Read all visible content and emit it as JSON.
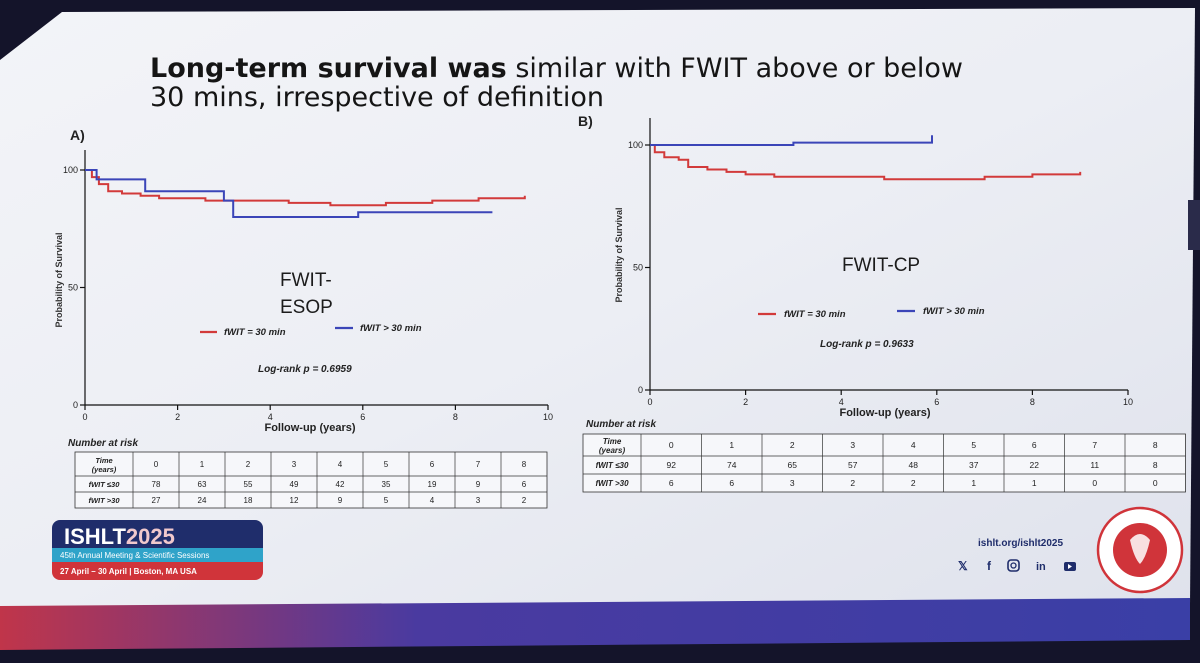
{
  "slide": {
    "title_bold": "Long-term survival was",
    "title_rest": " similar with FWIT above or below",
    "title_line2": "30 mins, irrespective of definition"
  },
  "colors": {
    "series_le30": "#d23a3a",
    "series_gt30": "#3b45b8",
    "brand_navy": "#1f2d6b",
    "brand_red": "#d0343a",
    "footer_band": "#2d2f8a"
  },
  "chart_data": [
    {
      "type": "line",
      "panel_label": "A)",
      "overlay_title": "FWIT-\nESOP",
      "overlay_line1": "FWIT-",
      "overlay_line2": "ESOP",
      "xlabel": "Follow-up (years)",
      "ylabel": "Probability of Survival",
      "xlim": [
        0,
        10
      ],
      "ylim": [
        0,
        100
      ],
      "x_ticks": [
        "0",
        "2",
        "4",
        "6",
        "8",
        "10"
      ],
      "y_ticks": [
        "0",
        "50",
        "100"
      ],
      "series": [
        {
          "name": "fWIT = 30 min",
          "color": "#d23a3a",
          "points": [
            [
              0,
              100
            ],
            [
              0.15,
              97
            ],
            [
              0.3,
              94
            ],
            [
              0.5,
              91
            ],
            [
              0.8,
              90
            ],
            [
              1.2,
              89
            ],
            [
              1.6,
              88
            ],
            [
              2.0,
              88
            ],
            [
              2.6,
              87
            ],
            [
              3.2,
              87
            ],
            [
              4.4,
              86
            ],
            [
              5.3,
              85
            ],
            [
              6.5,
              86
            ],
            [
              7.5,
              87
            ],
            [
              8.5,
              88
            ],
            [
              9.5,
              89
            ]
          ]
        },
        {
          "name": "fWIT > 30 min",
          "color": "#3b45b8",
          "points": [
            [
              0,
              100
            ],
            [
              0.25,
              96
            ],
            [
              1.3,
              96
            ],
            [
              1.3,
              91
            ],
            [
              3.0,
              91
            ],
            [
              3.0,
              87
            ],
            [
              3.2,
              87
            ],
            [
              3.2,
              80
            ],
            [
              5.9,
              80
            ],
            [
              5.9,
              82
            ],
            [
              8.8,
              82
            ]
          ]
        }
      ],
      "legend": [
        "fWIT = 30 min",
        "fWIT > 30 min"
      ],
      "legend_placement": "center",
      "annotation": "Log-rank p = 0.6959",
      "risk_table": {
        "title": "Number at risk",
        "header_label": "Time\n(years)",
        "header_label_line1": "Time",
        "header_label_line2": "(years)",
        "times": [
          "0",
          "1",
          "2",
          "3",
          "4",
          "5",
          "6",
          "7",
          "8"
        ],
        "rows": [
          {
            "label": "fWIT ≤30",
            "values": [
              "78",
              "63",
              "55",
              "49",
              "42",
              "35",
              "19",
              "9",
              "6"
            ]
          },
          {
            "label": "fWIT >30",
            "values": [
              "27",
              "24",
              "18",
              "12",
              "9",
              "5",
              "4",
              "3",
              "2"
            ]
          }
        ]
      }
    },
    {
      "type": "line",
      "panel_label": "B)",
      "overlay_title": "FWIT-CP",
      "xlabel": "Follow-up (years)",
      "ylabel": "Probability of Survival",
      "xlim": [
        0,
        10
      ],
      "ylim": [
        0,
        100
      ],
      "x_ticks": [
        "0",
        "2",
        "4",
        "6",
        "8",
        "10"
      ],
      "y_ticks": [
        "0",
        "50",
        "100"
      ],
      "series": [
        {
          "name": "fWIT = 30 min",
          "color": "#d23a3a",
          "points": [
            [
              0,
              100
            ],
            [
              0.1,
              97
            ],
            [
              0.3,
              95
            ],
            [
              0.6,
              94
            ],
            [
              0.8,
              91
            ],
            [
              1.2,
              90
            ],
            [
              1.6,
              89
            ],
            [
              2.0,
              88
            ],
            [
              2.6,
              87
            ],
            [
              3.4,
              87
            ],
            [
              4.2,
              87
            ],
            [
              4.9,
              86
            ],
            [
              6.0,
              86
            ],
            [
              7.0,
              87
            ],
            [
              8.0,
              88
            ],
            [
              9.0,
              89
            ]
          ]
        },
        {
          "name": "fWIT > 30 min",
          "color": "#3b45b8",
          "points": [
            [
              0,
              100
            ],
            [
              0.4,
              100
            ],
            [
              3.0,
              101
            ],
            [
              5.9,
              104
            ]
          ]
        }
      ],
      "legend": [
        "fWIT = 30 min",
        "fWIT > 30 min"
      ],
      "legend_placement": "center",
      "annotation": "Log-rank p = 0.9633",
      "risk_table": {
        "title": "Number at risk",
        "header_label": "Time\n(years)",
        "header_label_line1": "Time",
        "header_label_line2": "(years)",
        "times": [
          "0",
          "1",
          "2",
          "3",
          "4",
          "5",
          "6",
          "7",
          "8"
        ],
        "rows": [
          {
            "label": "fWIT ≤30",
            "values": [
              "92",
              "74",
              "65",
              "57",
              "48",
              "37",
              "22",
              "11",
              "8"
            ]
          },
          {
            "label": "fWIT >30",
            "values": [
              "6",
              "6",
              "3",
              "2",
              "2",
              "1",
              "1",
              "0",
              "0"
            ]
          }
        ]
      }
    }
  ],
  "footer": {
    "logo_text_prefix": "ISHLT",
    "logo_text_year": "2025",
    "meeting_line": "45th Annual Meeting & Scientific Sessions",
    "dates_line": "27 April – 30 April | Boston, MA USA",
    "url": "ishlt.org/ishlt2025",
    "social_icons": [
      "x-icon",
      "facebook-icon",
      "instagram-icon",
      "linkedin-icon",
      "youtube-icon"
    ],
    "seal_text": "The International Society for Heart and Lung Transplantation"
  }
}
